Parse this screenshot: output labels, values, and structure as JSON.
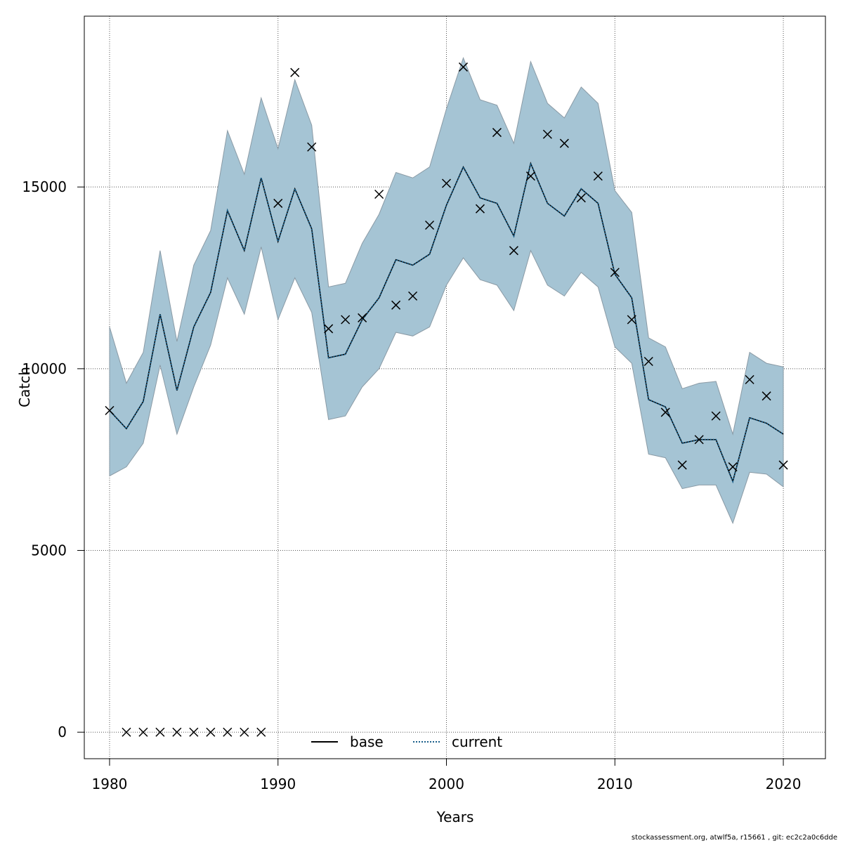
{
  "chart_data": {
    "type": "line",
    "xlabel": "Years",
    "ylabel": "Catch",
    "xlim": [
      1978.5,
      2022.5
    ],
    "ylim": [
      -730,
      19700
    ],
    "x_ticks": [
      1980,
      1990,
      2000,
      2010,
      2020
    ],
    "y_ticks": [
      0,
      5000,
      10000,
      15000
    ],
    "grid": true,
    "legend_position": "bottom-center",
    "colors": {
      "band": "#a5c4d4",
      "band_edge": "#8a9aa5",
      "current_line": "#1a5f8a",
      "base_line": "#000000",
      "grid": "#555555",
      "marker": "#000000"
    },
    "x": [
      1980,
      1981,
      1982,
      1983,
      1984,
      1985,
      1986,
      1987,
      1988,
      1989,
      1990,
      1991,
      1992,
      1993,
      1994,
      1995,
      1996,
      1997,
      1998,
      1999,
      2000,
      2001,
      2002,
      2003,
      2004,
      2005,
      2006,
      2007,
      2008,
      2009,
      2010,
      2011,
      2012,
      2013,
      2014,
      2015,
      2016,
      2017,
      2018,
      2019,
      2020
    ],
    "band_upper": [
      11150,
      9600,
      10450,
      13250,
      10750,
      12850,
      13800,
      16550,
      15350,
      17450,
      16050,
      17950,
      16700,
      12250,
      12350,
      13450,
      14250,
      15400,
      15250,
      15550,
      17150,
      18550,
      17400,
      17250,
      16200,
      18450,
      17300,
      16900,
      17750,
      17300,
      14900,
      14300,
      10850,
      10600,
      9450,
      9600,
      9650,
      8200,
      10450,
      10150,
      10050
    ],
    "band_lower": [
      7050,
      7300,
      7950,
      10100,
      8200,
      9500,
      10650,
      12500,
      11500,
      13350,
      11350,
      12500,
      11550,
      8600,
      8700,
      9500,
      10000,
      11000,
      10900,
      11150,
      12300,
      13050,
      12450,
      12300,
      11600,
      13250,
      12300,
      12000,
      12650,
      12250,
      10600,
      10150,
      7650,
      7550,
      6700,
      6800,
      6800,
      5750,
      7150,
      7100,
      6750
    ],
    "series": [
      {
        "name": "base",
        "values": [
          8850,
          8350,
          9100,
          11500,
          9400,
          11150,
          12100,
          14350,
          13250,
          15250,
          13500,
          14950,
          13850,
          10300,
          10400,
          11350,
          11950,
          13000,
          12850,
          13150,
          14500,
          15550,
          14700,
          14550,
          13650,
          15650,
          14550,
          14200,
          14950,
          14550,
          12600,
          11950,
          9150,
          8950,
          7950,
          8050,
          8050,
          6900,
          8650,
          8500,
          8200
        ]
      },
      {
        "name": "current",
        "values": [
          8850,
          8350,
          9100,
          11500,
          9400,
          11150,
          12100,
          14350,
          13250,
          15250,
          13500,
          14950,
          13850,
          10300,
          10400,
          11350,
          11950,
          13000,
          12850,
          13150,
          14500,
          15550,
          14700,
          14550,
          13650,
          15650,
          14550,
          14200,
          14950,
          14550,
          12600,
          11950,
          9150,
          8950,
          7950,
          8050,
          8050,
          6900,
          8650,
          8500,
          8200
        ]
      }
    ],
    "observed": {
      "x": [
        1980,
        1981,
        1982,
        1983,
        1984,
        1985,
        1986,
        1987,
        1988,
        1989,
        1990,
        1991,
        1992,
        1993,
        1994,
        1995,
        1996,
        1997,
        1998,
        1999,
        2000,
        2001,
        2002,
        2003,
        2004,
        2005,
        2006,
        2007,
        2008,
        2009,
        2010,
        2011,
        2012,
        2013,
        2014,
        2015,
        2016,
        2017,
        2018,
        2019,
        2020
      ],
      "values": [
        8850,
        0,
        0,
        0,
        0,
        0,
        0,
        0,
        0,
        0,
        14550,
        18150,
        16100,
        11100,
        11350,
        11400,
        14800,
        11750,
        12000,
        13950,
        15100,
        18300,
        14400,
        16500,
        13250,
        15300,
        16450,
        16200,
        14700,
        15300,
        12650,
        11350,
        10200,
        8800,
        7350,
        8050,
        8700,
        7300,
        9700,
        9250,
        7350
      ]
    }
  },
  "legend": {
    "base_label": "base",
    "current_label": "current"
  },
  "footer": {
    "text": "stockassessment.org, atwlf5a, r15661 , git: ec2c2a0c6dde"
  }
}
